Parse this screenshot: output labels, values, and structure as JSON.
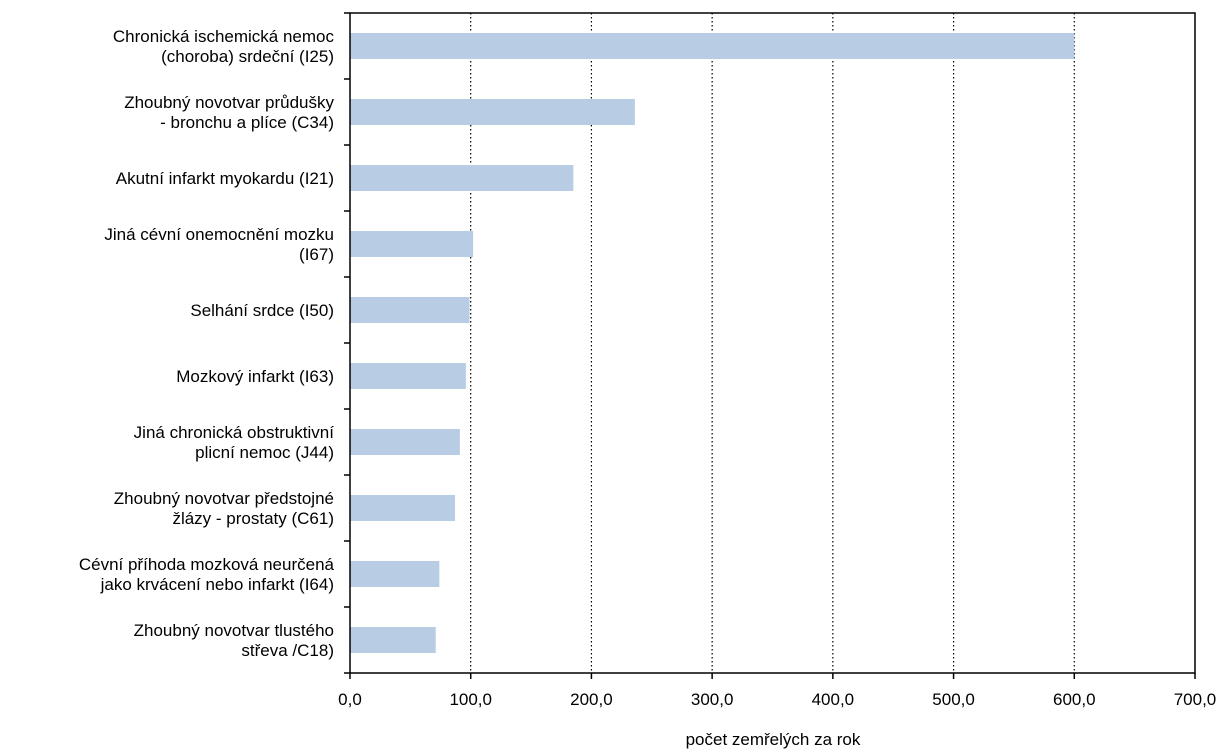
{
  "chart_data": {
    "type": "bar",
    "orientation": "horizontal",
    "categories": [
      [
        "Chronická ischemická nemoc",
        "(choroba) srdeční (I25)"
      ],
      [
        "Zhoubný novotvar průdušky",
        "- bronchu a plíce (C34)"
      ],
      [
        "Akutní infarkt myokardu (I21)"
      ],
      [
        "Jiná cévní onemocnění mozku",
        "(I67)"
      ],
      [
        "Selhání srdce (I50)"
      ],
      [
        "Mozkový infarkt (I63)"
      ],
      [
        "Jiná chronická obstruktivní",
        "plicní nemoc (J44)"
      ],
      [
        "Zhoubný novotvar předstojné",
        "žlázy - prostaty (C61)"
      ],
      [
        "Cévní příhoda mozková neurčená",
        "jako krvácení nebo infarkt (I64)"
      ],
      [
        "Zhoubný novotvar tlustého",
        "střeva /C18)"
      ]
    ],
    "values": [
      600,
      236,
      185,
      102,
      99,
      96,
      91,
      87,
      74,
      71
    ],
    "xlim": [
      0,
      700
    ],
    "xticks": [
      0,
      100,
      200,
      300,
      400,
      500,
      600,
      700
    ],
    "xtick_labels": [
      "0,0",
      "100,0",
      "200,0",
      "300,0",
      "400,0",
      "500,0",
      "600,0",
      "700,0"
    ],
    "xlabel": "počet zemřelých za rok",
    "ylabel": "",
    "title": "",
    "grid": "vertical dotted",
    "bar_color": "#b8cce4"
  }
}
